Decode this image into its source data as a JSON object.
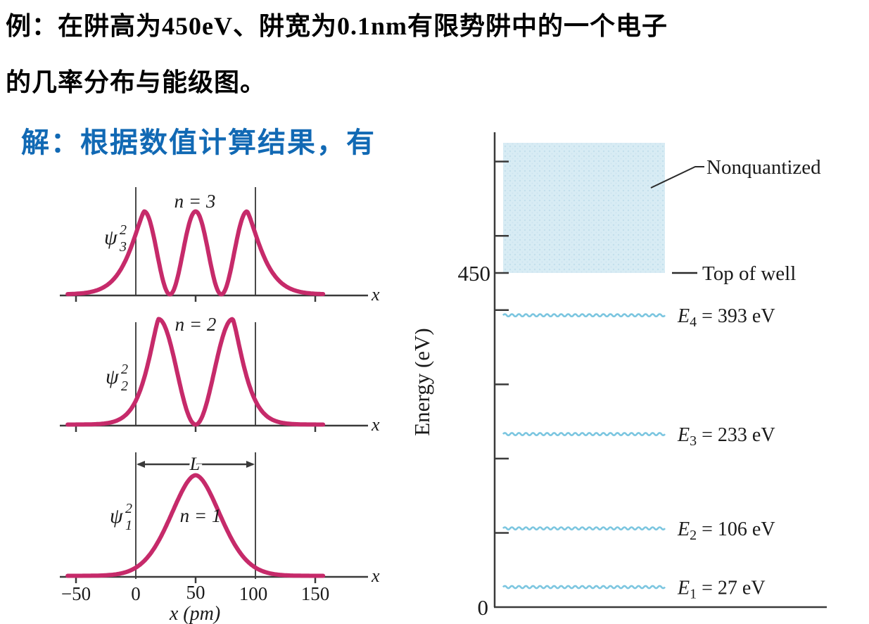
{
  "header": {
    "title_line1": "例：在阱高为450eV、阱宽为0.1nm有限势阱中的一个电子",
    "title_line2": "的几率分布与能级图。",
    "solution_text": "解：根据数值计算结果，有"
  },
  "colors": {
    "solution_blue": "#1169b4",
    "curve_magenta": "#c62a6a",
    "level_blue": "#7cc6e0",
    "nonquantized_box_blue": "#d8ecf4",
    "line_dark": "#3a3a3a"
  },
  "prob_figure": {
    "x_end_label": "x",
    "x_axis_label": "x (pm)",
    "well_width_label": "L",
    "x_tick_labels": [
      "−50",
      "0",
      "50",
      "100",
      "150"
    ],
    "plots": [
      {
        "n_label": "n = 3",
        "psi_symbol": "ψ",
        "psi_sup": "2",
        "psi_sub": "3",
        "display": "ψ3² , n = 3",
        "peaks_pm": [
          7,
          50,
          93
        ],
        "tail_w": 17,
        "tail_pow": 1.3
      },
      {
        "n_label": "n = 2",
        "psi_symbol": "ψ",
        "psi_sup": "2",
        "psi_sub": "2",
        "display": "ψ2² , n = 2",
        "peaks_pm": [
          19,
          81
        ],
        "tail_w": 14,
        "tail_pow": 1.3
      },
      {
        "n_label": "n = 1",
        "psi_symbol": "ψ",
        "psi_sup": "2",
        "psi_sub": "1",
        "display": "ψ1² , n = 1",
        "peaks_pm": [
          50
        ],
        "tail_w": 30,
        "tail_pow": 1.8
      }
    ]
  },
  "energy_figure": {
    "axis_label": "Energy (eV)",
    "well_top_tick_label": "450",
    "zero_tick_label": "0",
    "nonquantized_label": "Nonquantized",
    "top_of_well_label": "Top of well",
    "well_top_eV": 450,
    "tick_eVs": [
      100,
      200,
      300,
      400,
      450,
      500,
      600
    ],
    "levels": [
      {
        "sym": "E",
        "sub": "4",
        "rest": " = 393 eV",
        "eV": 393,
        "display": "E₄ = 393 eV"
      },
      {
        "sym": "E",
        "sub": "3",
        "rest": " = 233 eV",
        "eV": 233,
        "display": "E₃ = 233 eV"
      },
      {
        "sym": "E",
        "sub": "2",
        "rest": " = 106 eV",
        "eV": 106,
        "display": "E₂ = 106 eV"
      },
      {
        "sym": "E",
        "sub": "1",
        "rest": " = 27 eV",
        "eV": 27,
        "display": "E₁ = 27 eV"
      }
    ]
  },
  "chart_data": [
    {
      "type": "line",
      "title": "Probability density ψn² of an electron in a finite potential well",
      "xlabel": "x (pm)",
      "x_ticks": [
        -50,
        0,
        50,
        100,
        150
      ],
      "well": {
        "left_pm": 0,
        "right_pm": 100,
        "width_label": "L"
      },
      "series": [
        {
          "name": "ψ3²",
          "n": 3,
          "peaks_pm": [
            7,
            50,
            93
          ],
          "zeros_pm": [
            28.5,
            71.5
          ],
          "penetrates_walls": true
        },
        {
          "name": "ψ2²",
          "n": 2,
          "peaks_pm": [
            19,
            81
          ],
          "zeros_pm": [
            50
          ],
          "penetrates_walls": true
        },
        {
          "name": "ψ1²",
          "n": 1,
          "peaks_pm": [
            50
          ],
          "zeros_pm": [],
          "penetrates_walls": true
        }
      ]
    },
    {
      "type": "energy-level-diagram",
      "ylabel": "Energy (eV)",
      "ylim": [
        0,
        640
      ],
      "y_ticks": [
        0,
        100,
        200,
        300,
        400,
        450,
        500,
        600
      ],
      "well_top_eV": 450,
      "levels": [
        {
          "name": "E1",
          "eV": 27
        },
        {
          "name": "E2",
          "eV": 106
        },
        {
          "name": "E3",
          "eV": 233
        },
        {
          "name": "E4",
          "eV": 393
        }
      ],
      "annotations": [
        "Nonquantized (above 450 eV)",
        "Top of well at 450 eV"
      ]
    }
  ]
}
